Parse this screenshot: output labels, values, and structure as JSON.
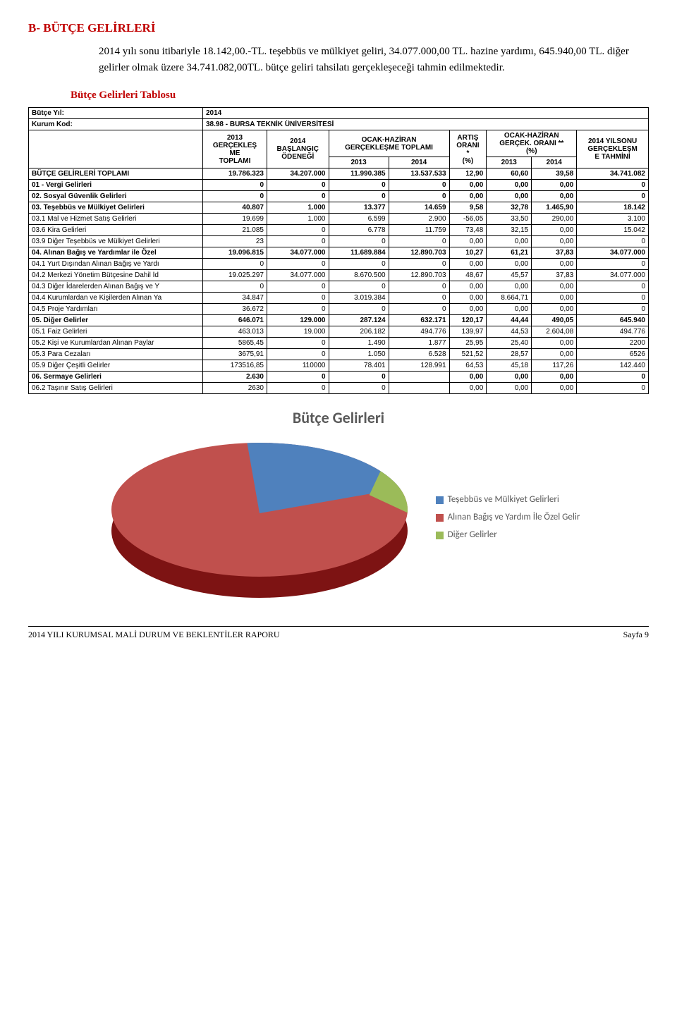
{
  "header": "B-  BÜTÇE GELİRLERİ",
  "intro": "2014 yılı sonu itibariyle 18.142,00.-TL. teşebbüs ve mülkiyet geliri, 34.077.000,00 TL. hazine  yardımı, 645.940,00 TL. diğer gelirler olmak üzere 34.741.082,00TL. bütçe geliri tahsilatı  gerçekleşeceği tahmin edilmektedir.",
  "table_title": "Bütçe Gelirleri Tablosu",
  "meta": {
    "year_label": "Bütçe Yıl:",
    "year_value": "2014",
    "inst_label": "Kurum Kod:",
    "inst_value": "38.98 - BURSA TEKNİK ÜNİVERSİTESİ"
  },
  "columns": {
    "c0": "",
    "c1": "2013\nGERÇEKLEŞ\nME\nTOPLAMI",
    "c2": "2014\nBAŞLANGIÇ\nÖDENEĞİ",
    "c3_parent": "OCAK-HAZİRAN\nGERÇEKLEŞME TOPLAMI",
    "c3a": "2013",
    "c3b": "2014",
    "c4": "ARTIŞ\nORANI\n*\n(%)",
    "c5_parent": "OCAK-HAZİRAN\nGERÇEK. ORANI **\n(%)",
    "c5a": "2013",
    "c5b": "2014",
    "c6": "2014 YILSONU\nGERÇEKLEŞM\nE TAHMİNİ"
  },
  "rows": [
    {
      "bold": true,
      "label": "BÜTÇE GELİRLERİ TOPLAMI",
      "v": [
        "19.786.323",
        "34.207.000",
        "11.990.385",
        "13.537.533",
        "12,90",
        "60,60",
        "39,58",
        "34.741.082"
      ]
    },
    {
      "bold": true,
      "label": "01 - Vergi Gelirleri",
      "v": [
        "0",
        "0",
        "0",
        "0",
        "0,00",
        "0,00",
        "0,00",
        "0"
      ]
    },
    {
      "bold": true,
      "label": "02. Sosyal Güvenlik Gelirleri",
      "v": [
        "0",
        "0",
        "0",
        "0",
        "0,00",
        "0,00",
        "0,00",
        "0"
      ]
    },
    {
      "bold": true,
      "label": "03. Teşebbüs ve Mülkiyet Gelirleri",
      "v": [
        "40.807",
        "1.000",
        "13.377",
        "14.659",
        "9,58",
        "32,78",
        "1.465,90",
        "18.142"
      ]
    },
    {
      "bold": false,
      "label": "03.1 Mal ve Hizmet Satış Gelirleri",
      "v": [
        "19.699",
        "1.000",
        "6.599",
        "2.900",
        "-56,05",
        "33,50",
        "290,00",
        "3.100"
      ]
    },
    {
      "bold": false,
      "label": "03.6 Kira Gelirleri",
      "v": [
        "21.085",
        "0",
        "6.778",
        "11.759",
        "73,48",
        "32,15",
        "0,00",
        "15.042"
      ]
    },
    {
      "bold": false,
      "label": "03.9 Diğer Teşebbüs ve Mülkiyet Gelirleri",
      "v": [
        "23",
        "0",
        "0",
        "0",
        "0,00",
        "0,00",
        "0,00",
        "0"
      ]
    },
    {
      "bold": true,
      "label": "04. Alınan Bağış ve Yardımlar ile Özel",
      "v": [
        "19.096.815",
        "34.077.000",
        "11.689.884",
        "12.890.703",
        "10,27",
        "61,21",
        "37,83",
        "34.077.000"
      ]
    },
    {
      "bold": false,
      "label": "04.1 Yurt Dışından Alınan Bağış ve Yardı",
      "v": [
        "0",
        "0",
        "0",
        "0",
        "0,00",
        "0,00",
        "0,00",
        "0"
      ]
    },
    {
      "bold": false,
      "label": "04.2 Merkezi Yönetim Bütçesine Dahil İd",
      "v": [
        "19.025.297",
        "34.077.000",
        "8.670.500",
        "12.890.703",
        "48,67",
        "45,57",
        "37,83",
        "34.077.000"
      ]
    },
    {
      "bold": false,
      "label": "04.3 Diğer İdarelerden Alınan Bağış ve Y",
      "v": [
        "0",
        "0",
        "0",
        "0",
        "0,00",
        "0,00",
        "0,00",
        "0"
      ]
    },
    {
      "bold": false,
      "label": "04.4 Kurumlardan ve Kişilerden Alınan Ya",
      "v": [
        "34.847",
        "0",
        "3.019.384",
        "0",
        "0,00",
        "8.664,71",
        "0,00",
        "0"
      ]
    },
    {
      "bold": false,
      "label": "04.5 Proje Yardımları",
      "v": [
        "36.672",
        "0",
        "0",
        "0",
        "0,00",
        "0,00",
        "0,00",
        "0"
      ]
    },
    {
      "bold": true,
      "label": "05. Diğer Gelirler",
      "v": [
        "646.071",
        "129.000",
        "287.124",
        "632.171",
        "120,17",
        "44,44",
        "490,05",
        "645.940"
      ]
    },
    {
      "bold": false,
      "label": "05.1 Faiz Gelirleri",
      "v": [
        "463.013",
        "19.000",
        "206.182",
        "494.776",
        "139,97",
        "44,53",
        "2.604,08",
        "494.776"
      ]
    },
    {
      "bold": false,
      "label": "05.2 Kişi ve Kurumlardan Alınan Paylar",
      "v": [
        "5865,45",
        "0",
        "1.490",
        "1.877",
        "25,95",
        "25,40",
        "0,00",
        "2200"
      ]
    },
    {
      "bold": false,
      "label": "05.3 Para Cezaları",
      "v": [
        "3675,91",
        "0",
        "1.050",
        "6.528",
        "521,52",
        "28,57",
        "0,00",
        "6526"
      ]
    },
    {
      "bold": false,
      "label": "05.9 Diğer Çeşitli Gelirler",
      "v": [
        "173516,85",
        "110000",
        "78.401",
        "128.991",
        "64,53",
        "45,18",
        "117,26",
        "142.440"
      ]
    },
    {
      "bold": true,
      "label": "06. Sermaye Gelirleri",
      "v": [
        "2.630",
        "0",
        "0",
        "",
        "0,00",
        "0,00",
        "0,00",
        "0"
      ]
    },
    {
      "bold": false,
      "label": "06.2 Taşınır Satış Gelirleri",
      "v": [
        "2630",
        "0",
        "0",
        "",
        "0,00",
        "0,00",
        "0,00",
        "0"
      ]
    }
  ],
  "chart": {
    "title": "Bütçe Gelirleri",
    "legend": [
      {
        "label": "Teşebbüs ve Mülkiyet Gelirleri",
        "color": "#4f81bd"
      },
      {
        "label": "Alınan Bağış ve Yardım İle Özel Gelir",
        "color": "#c0504d"
      },
      {
        "label": "Diğer Gelirler",
        "color": "#9bbb59"
      }
    ],
    "slice_colors": {
      "top": "#c0504d",
      "side": "#7d1313",
      "s1": "#4f81bd",
      "s3": "#9bbb59"
    }
  },
  "footer": {
    "left": "2014 YILI KURUMSAL MALİ DURUM VE BEKLENTİLER RAPORU",
    "right": "Sayfa 9"
  }
}
